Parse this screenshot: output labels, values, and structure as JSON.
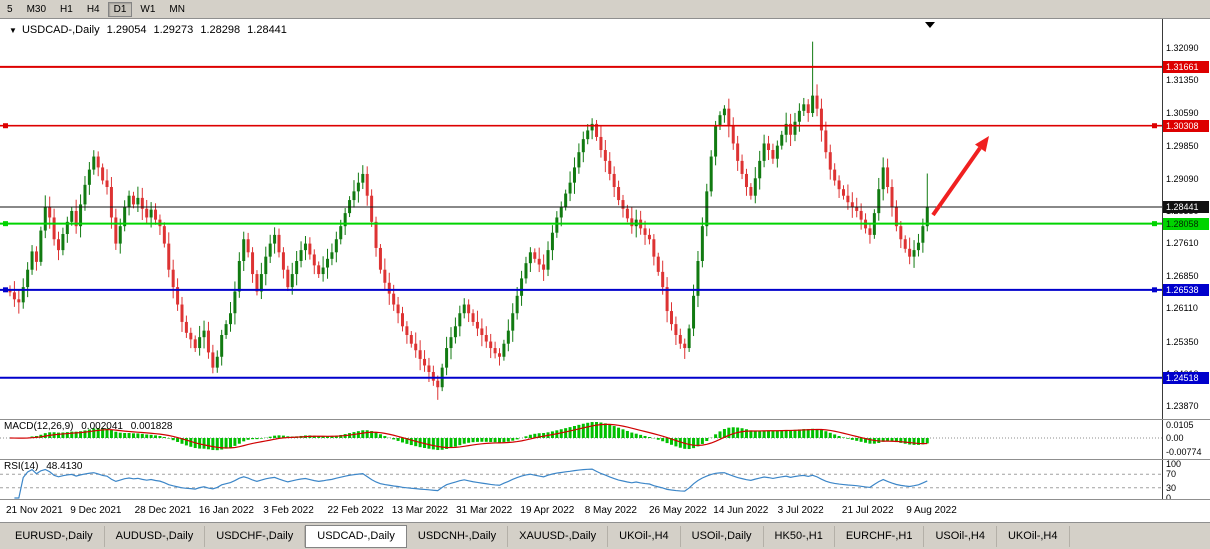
{
  "toolbar": {
    "periods": [
      {
        "label": "5",
        "active": false
      },
      {
        "label": "M30",
        "active": false
      },
      {
        "label": "H1",
        "active": false
      },
      {
        "label": "H4",
        "active": false
      },
      {
        "label": "D1",
        "active": true
      },
      {
        "label": "W1",
        "active": false
      },
      {
        "label": "MN",
        "active": false
      }
    ]
  },
  "chart": {
    "title": {
      "marker": "▼",
      "symbol": "USDCAD-,Daily",
      "open": "1.29054",
      "high": "1.29273",
      "low": "1.28298",
      "close": "1.28441"
    },
    "price_axis_labels": [
      "1.32090",
      "1.31350",
      "1.30590",
      "1.29850",
      "1.29090",
      "1.28350",
      "1.27610",
      "1.26850",
      "1.26110",
      "1.25350",
      "1.24610",
      "1.23870"
    ],
    "levels": [
      {
        "label": "1.31661",
        "price": 1.31661,
        "color": "#dd0000",
        "tag_bg": "#dd0000",
        "tag_fg": "#ffffff",
        "width": 2,
        "handles": false
      },
      {
        "label": "1.30308",
        "price": 1.30308,
        "color": "#dd0000",
        "tag_bg": "#dd0000",
        "tag_fg": "#ffffff",
        "width": 1.6,
        "handles": true
      },
      {
        "label": "1.28441",
        "price": 1.28441,
        "color": "#111111",
        "tag_bg": "#111111",
        "tag_fg": "#ffffff",
        "width": 1,
        "handles": false
      },
      {
        "label": "1.28058",
        "price": 1.28058,
        "color": "#00d400",
        "tag_bg": "#00d400",
        "tag_fg": "#002b00",
        "width": 2,
        "handles": true
      },
      {
        "label": "1.26538",
        "price": 1.26538,
        "color": "#0000cc",
        "tag_bg": "#0000cc",
        "tag_fg": "#ffffff",
        "width": 2,
        "handles": true
      },
      {
        "label": "1.24518",
        "price": 1.24518,
        "color": "#0000cc",
        "tag_bg": "#0000cc",
        "tag_fg": "#ffffff",
        "width": 2,
        "handles": false
      }
    ],
    "dates": [
      "21 Nov 2021",
      "9 Dec 2021",
      "28 Dec 2021",
      "16 Jan 2022",
      "3 Feb 2022",
      "22 Feb 2022",
      "13 Mar 2022",
      "31 Mar 2022",
      "19 Apr 2022",
      "8 May 2022",
      "26 May 2022",
      "14 Jun 2022",
      "3 Jul 2022",
      "21 Jul 2022",
      "9 Aug 2022"
    ],
    "arrow_color": "#f02020"
  },
  "chart_data": {
    "type": "candlestick",
    "title": "USDCAD-,Daily",
    "bull_color": "#117a11",
    "bear_color": "#dd3333",
    "y_range": {
      "top": 1.3276,
      "bottom": 1.2357
    },
    "open_first": 1.2655,
    "closes": [
      1.2648,
      1.2632,
      1.2625,
      1.266,
      1.27,
      1.2742,
      1.2718,
      1.279,
      1.2845,
      1.282,
      1.277,
      1.2745,
      1.2782,
      1.281,
      1.2835,
      1.28,
      1.285,
      1.2895,
      1.293,
      1.296,
      1.2935,
      1.2905,
      1.289,
      1.282,
      1.276,
      1.28,
      1.2845,
      1.287,
      1.285,
      1.2865,
      1.284,
      1.282,
      1.2838,
      1.2815,
      1.28,
      1.276,
      1.27,
      1.266,
      1.262,
      1.258,
      1.2555,
      1.254,
      1.252,
      1.2545,
      1.256,
      1.251,
      1.2475,
      1.25,
      1.255,
      1.2575,
      1.26,
      1.265,
      1.272,
      1.277,
      1.274,
      1.269,
      1.265,
      1.269,
      1.273,
      1.276,
      1.278,
      1.274,
      1.27,
      1.266,
      1.269,
      1.272,
      1.2745,
      1.276,
      1.2735,
      1.271,
      1.269,
      1.2705,
      1.2725,
      1.274,
      1.277,
      1.28,
      1.283,
      1.286,
      1.288,
      1.29,
      1.292,
      1.287,
      1.281,
      1.275,
      1.27,
      1.267,
      1.2645,
      1.262,
      1.26,
      1.257,
      1.255,
      1.253,
      1.2515,
      1.2495,
      1.248,
      1.2465,
      1.2445,
      1.243,
      1.2475,
      1.252,
      1.2545,
      1.257,
      1.26,
      1.262,
      1.26,
      1.258,
      1.2565,
      1.255,
      1.2535,
      1.252,
      1.2508,
      1.25,
      1.253,
      1.256,
      1.26,
      1.264,
      1.268,
      1.2715,
      1.274,
      1.2725,
      1.2712,
      1.27,
      1.2745,
      1.2785,
      1.282,
      1.2845,
      1.2875,
      1.29,
      1.2935,
      1.297,
      1.3,
      1.302,
      1.3035,
      1.3005,
      1.2975,
      1.295,
      1.292,
      1.289,
      1.286,
      1.284,
      1.2818,
      1.28,
      1.2815,
      1.2795,
      1.278,
      1.277,
      1.273,
      1.2695,
      1.266,
      1.2605,
      1.2575,
      1.255,
      1.253,
      1.252,
      1.2565,
      1.264,
      1.272,
      1.28,
      1.288,
      1.296,
      1.303,
      1.3055,
      1.307,
      1.303,
      1.299,
      1.295,
      1.292,
      1.289,
      1.287,
      1.291,
      1.295,
      1.299,
      1.2975,
      1.2955,
      1.2985,
      1.301,
      1.3035,
      1.301,
      1.304,
      1.3065,
      1.308,
      1.306,
      1.31,
      1.307,
      1.302,
      1.297,
      1.293,
      1.2905,
      1.2885,
      1.287,
      1.2855,
      1.2845,
      1.2835,
      1.2815,
      1.2795,
      1.278,
      1.283,
      1.2885,
      1.2935,
      1.289,
      1.2845,
      1.28,
      1.277,
      1.2748,
      1.273,
      1.2745,
      1.2762,
      1.28,
      1.28441
    ],
    "wick_overrides": {
      "46": {
        "l": 1.2462
      },
      "97": {
        "l": 1.2401
      },
      "132": {
        "h": 1.3048
      },
      "153": {
        "l": 1.2495
      },
      "162": {
        "h": 1.3078
      },
      "182": {
        "h": 1.3224
      },
      "208": {
        "h": 1.2921
      }
    }
  },
  "panes": {
    "macd": {
      "label": "MACD(12,26,9)",
      "value1": "0.002041",
      "value2": "0.001828",
      "scale": [
        "0.0105",
        "0.00",
        "-0.00774"
      ],
      "hist_color": "#00c000",
      "signal_color": "#d00000"
    },
    "rsi": {
      "label": "RSI(14)",
      "value": "48.4130",
      "scale": [
        "100",
        "70",
        "30",
        "0"
      ],
      "line_color": "#3c86c8",
      "levels": [
        70,
        30
      ]
    }
  },
  "tabs": {
    "items": [
      "EURUSD-,Daily",
      "AUDUSD-,Daily",
      "USDCHF-,Daily",
      "USDCAD-,Daily",
      "USDCNH-,Daily",
      "XAUUSD-,Daily",
      "UKOil-,H4",
      "USOil-,Daily",
      "HK50-,H1",
      "EURCHF-,H1",
      "USOil-,H4",
      "UKOil-,H4"
    ],
    "active_index": 3
  }
}
